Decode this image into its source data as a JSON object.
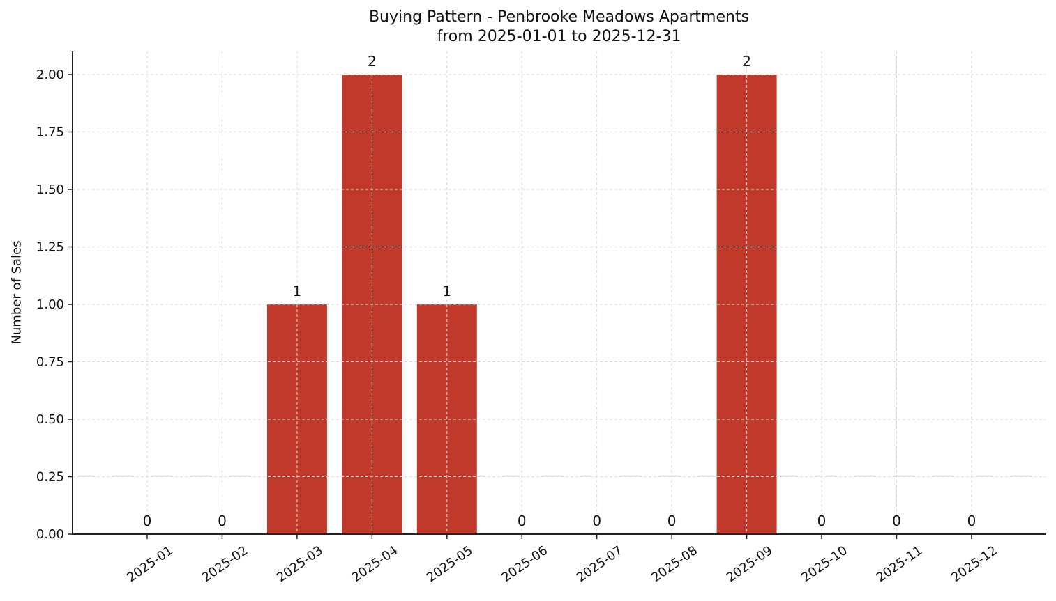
{
  "chart_data": {
    "type": "bar",
    "title": "Buying Pattern - Penbrooke Meadows Apartments",
    "subtitle": "from 2025-01-01 to 2025-12-31",
    "xlabel": "",
    "ylabel": "Number of Sales",
    "categories": [
      "2025-01",
      "2025-02",
      "2025-03",
      "2025-04",
      "2025-05",
      "2025-06",
      "2025-07",
      "2025-08",
      "2025-09",
      "2025-10",
      "2025-11",
      "2025-12"
    ],
    "values": [
      0,
      0,
      1,
      2,
      1,
      0,
      0,
      0,
      2,
      0,
      0,
      0
    ],
    "data_labels": [
      "0",
      "0",
      "1",
      "2",
      "1",
      "0",
      "0",
      "0",
      "2",
      "0",
      "0",
      "0"
    ],
    "ylim": [
      0,
      2.1
    ],
    "yticks": [
      0.0,
      0.25,
      0.5,
      0.75,
      1.0,
      1.25,
      1.5,
      1.75,
      2.0
    ],
    "ytick_labels": [
      "0.00",
      "0.25",
      "0.50",
      "0.75",
      "1.00",
      "1.25",
      "1.50",
      "1.75",
      "2.00"
    ],
    "grid": true,
    "grid_style": "dashed",
    "legend": null,
    "bar_color": "#c0392b",
    "grid_color": "#d9d9d9",
    "axis_color": "#222222",
    "xtick_rotation": -35
  }
}
